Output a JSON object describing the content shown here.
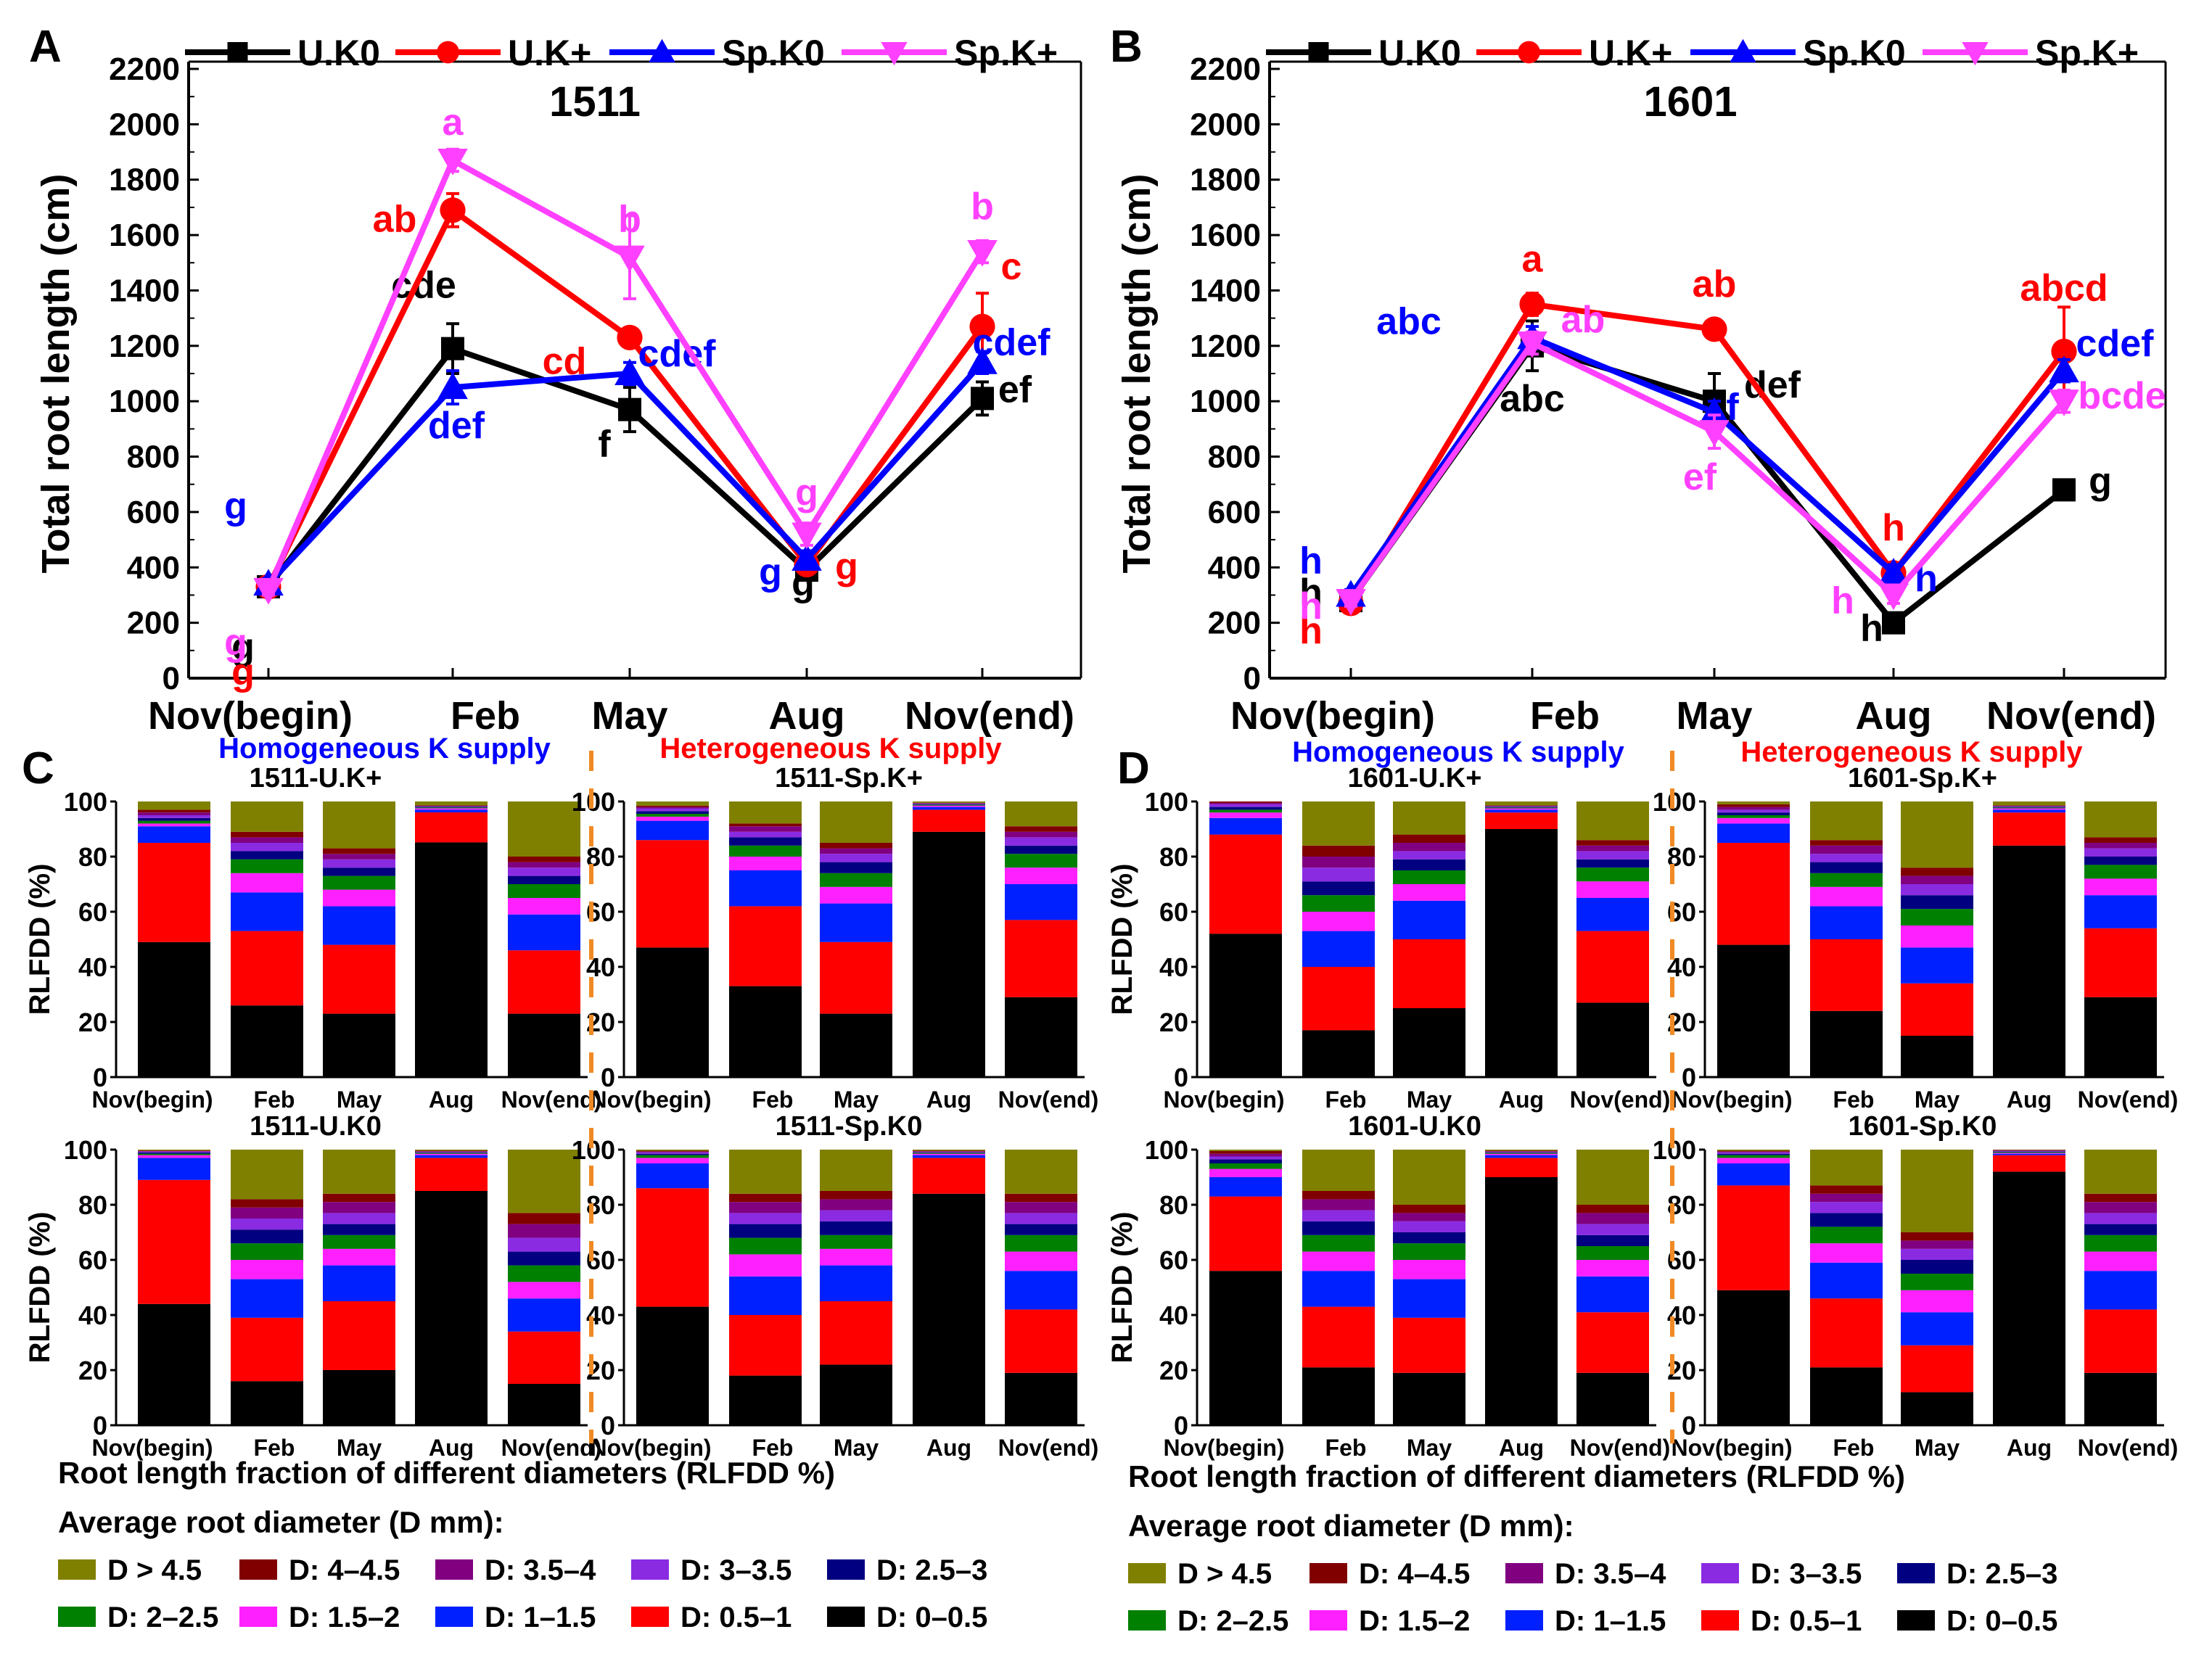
{
  "chart_data": {
    "type": "composite",
    "line_charts": [
      {
        "panel": "A",
        "type": "line",
        "title": "1511",
        "ylabel": "Total root length (cm)",
        "xlabel": "",
        "categories": [
          "Nov(begin)",
          "Feb",
          "May",
          "Aug",
          "Nov(end)"
        ],
        "ylim": [
          0,
          2200
        ],
        "yticks": [
          0,
          200,
          400,
          600,
          800,
          1000,
          1200,
          1400,
          1600,
          1800,
          2000,
          2200
        ],
        "series": [
          {
            "name": "U.K0",
            "color": "#000000",
            "marker": "square",
            "values": [
              330,
              1190,
              970,
              390,
              1010
            ],
            "errors": [
              20,
              90,
              80,
              30,
              60
            ],
            "letters": [
              "g",
              "cde",
              "f",
              "g",
              "ef"
            ]
          },
          {
            "name": "U.K+",
            "color": "#ff0000",
            "marker": "circle",
            "values": [
              330,
              1690,
              1230,
              410,
              1270
            ],
            "errors": [
              20,
              60,
              30,
              30,
              120
            ],
            "letters": [
              "g",
              "ab",
              "cd",
              "g",
              "c"
            ]
          },
          {
            "name": "Sp.K0",
            "color": "#0000ff",
            "marker": "triangle-up",
            "values": [
              340,
              1050,
              1100,
              430,
              1140
            ],
            "errors": [
              20,
              60,
              40,
              30,
              40
            ],
            "letters": [
              "g",
              "def",
              "cdef",
              "g",
              "cdef"
            ]
          },
          {
            "name": "Sp.K+",
            "color": "#ff40ff",
            "marker": "triangle-down",
            "values": [
              320,
              1870,
              1520,
              520,
              1540
            ],
            "errors": [
              20,
              40,
              150,
              40,
              40
            ],
            "letters": [
              "g",
              "a",
              "b",
              "g",
              "b"
            ]
          }
        ]
      },
      {
        "panel": "B",
        "type": "line",
        "title": "1601",
        "ylabel": "Total root length (cm)",
        "xlabel": "",
        "categories": [
          "Nov(begin)",
          "Feb",
          "May",
          "Aug",
          "Nov(end)"
        ],
        "ylim": [
          0,
          2200
        ],
        "yticks": [
          0,
          200,
          400,
          600,
          800,
          1000,
          1200,
          1400,
          1600,
          1800,
          2000,
          2200
        ],
        "series": [
          {
            "name": "U.K0",
            "color": "#000000",
            "marker": "square",
            "values": [
              280,
              1200,
              1000,
              200,
              680
            ],
            "errors": [
              20,
              90,
              100,
              30,
              30
            ],
            "letters": [
              "h",
              "abc",
              "def",
              "h",
              "g"
            ]
          },
          {
            "name": "U.K+",
            "color": "#ff0000",
            "marker": "circle",
            "values": [
              270,
              1350,
              1260,
              380,
              1180
            ],
            "errors": [
              20,
              40,
              30,
              30,
              160
            ],
            "letters": [
              "h",
              "a",
              "ab",
              "h",
              "abcd"
            ]
          },
          {
            "name": "Sp.K0",
            "color": "#0000ff",
            "marker": "triangle-up",
            "values": [
              300,
              1230,
              960,
              380,
              1110
            ],
            "errors": [
              20,
              40,
              40,
              30,
              40
            ],
            "letters": [
              "h",
              "abc",
              "f",
              "h",
              "cdef"
            ]
          },
          {
            "name": "Sp.K+",
            "color": "#ff40ff",
            "marker": "triangle-down",
            "values": [
              280,
              1210,
              890,
              300,
              1000
            ],
            "errors": [
              20,
              40,
              60,
              30,
              40
            ],
            "letters": [
              "h",
              "ab",
              "ef",
              "h",
              "bcde"
            ]
          }
        ]
      }
    ],
    "stacked_bar_charts": {
      "type": "bar",
      "stacked": true,
      "ylabel": "RLFDD (%)",
      "ylim": [
        0,
        100
      ],
      "yticks": [
        0,
        20,
        40,
        60,
        80,
        100
      ],
      "categories": [
        "Nov(begin)",
        "Feb",
        "May",
        "Aug",
        "Nov(end)"
      ],
      "diameter_classes": [
        {
          "name": "D: 0–0.5",
          "color": "#000000"
        },
        {
          "name": "D: 0.5–1",
          "color": "#ff0000"
        },
        {
          "name": "D: 1–1.5",
          "color": "#0020ff"
        },
        {
          "name": "D: 1.5–2",
          "color": "#ff20ff"
        },
        {
          "name": "D: 2–2.5",
          "color": "#008000"
        },
        {
          "name": "D: 2.5–3",
          "color": "#000080"
        },
        {
          "name": "D: 3–3.5",
          "color": "#8a2be2"
        },
        {
          "name": "D: 3.5–4",
          "color": "#800080"
        },
        {
          "name": "D: 4–4.5",
          "color": "#800000"
        },
        {
          "name": "D > 4.5",
          "color": "#808000"
        }
      ],
      "panels": [
        {
          "panel": "C",
          "title": "1511-U.K+",
          "stacks": [
            [
              49,
              36,
              6,
              1,
              1,
              1,
              1,
              1,
              1,
              3
            ],
            [
              26,
              27,
              14,
              7,
              5,
              3,
              3,
              2,
              2,
              11
            ],
            [
              23,
              25,
              14,
              6,
              5,
              3,
              3,
              2,
              2,
              17
            ],
            [
              86,
              11,
              1,
              0.5,
              0.3,
              0.2,
              0.2,
              0.2,
              0.2,
              1.4
            ],
            [
              23,
              23,
              13,
              6,
              5,
              3,
              3,
              2,
              2,
              20
            ]
          ]
        },
        {
          "panel": "C",
          "title": "1511-Sp.K+",
          "stacks": [
            [
              47,
              39,
              7,
              1.5,
              1,
              1,
              1,
              0.5,
              0.5,
              1.5
            ],
            [
              33,
              29,
              13,
              5,
              4,
              3,
              2,
              2,
              1,
              8
            ],
            [
              23,
              26,
              14,
              6,
              5,
              4,
              3,
              2,
              2,
              15
            ],
            [
              89,
              8,
              1,
              0.5,
              0.3,
              0.2,
              0.2,
              0.2,
              0.1,
              0.5
            ],
            [
              29,
              28,
              13,
              6,
              5,
              3,
              3,
              2,
              2,
              9
            ]
          ]
        },
        {
          "panel": "C",
          "title": "1511-U.K0",
          "stacks": [
            [
              44,
              45,
              8,
              1,
              0.5,
              0.5,
              0.3,
              0.2,
              0.2,
              0.3
            ],
            [
              16,
              23,
              14,
              7,
              6,
              5,
              4,
              4,
              3,
              18
            ],
            [
              20,
              25,
              13,
              6,
              5,
              4,
              4,
              4,
              3,
              16
            ],
            [
              85,
              12,
              1,
              0.5,
              0.3,
              0.2,
              0.2,
              0.2,
              0.2,
              0.4
            ],
            [
              15,
              19,
              12,
              6,
              6,
              5,
              5,
              5,
              4,
              23
            ]
          ]
        },
        {
          "panel": "C",
          "title": "1511-Sp.K0",
          "stacks": [
            [
              43,
              43,
              9,
              2,
              1,
              0.5,
              0.5,
              0.3,
              0.3,
              0.4
            ],
            [
              18,
              22,
              14,
              8,
              6,
              5,
              4,
              4,
              3,
              16
            ],
            [
              22,
              23,
              13,
              6,
              5,
              5,
              4,
              4,
              3,
              15
            ],
            [
              84,
              13,
              1,
              0.5,
              0.3,
              0.2,
              0.2,
              0.2,
              0.2,
              0.4
            ],
            [
              19,
              23,
              14,
              7,
              6,
              4,
              4,
              4,
              3,
              16
            ]
          ]
        },
        {
          "panel": "D",
          "title": "1601-U.K+",
          "stacks": [
            [
              52,
              36,
              6,
              2,
              1,
              1,
              1,
              0.5,
              0.5,
              0
            ],
            [
              17,
              23,
              13,
              7,
              6,
              5,
              5,
              4,
              4,
              16
            ],
            [
              25,
              25,
              14,
              6,
              5,
              4,
              3,
              3,
              3,
              12
            ],
            [
              90,
              6,
              1,
              0.5,
              0.3,
              0.2,
              0.2,
              0.2,
              0.2,
              1.4
            ],
            [
              27,
              26,
              12,
              6,
              5,
              3,
              3,
              2,
              2,
              14
            ]
          ]
        },
        {
          "panel": "D",
          "title": "1601-Sp.K+",
          "stacks": [
            [
              48,
              37,
              7,
              2,
              1,
              1,
              1,
              1,
              1,
              1
            ],
            [
              24,
              26,
              12,
              7,
              5,
              4,
              3,
              3,
              2,
              14
            ],
            [
              15,
              19,
              13,
              8,
              6,
              5,
              4,
              3,
              3,
              24
            ],
            [
              84,
              12,
              1,
              0.5,
              0.3,
              0.2,
              0.2,
              0.2,
              0.2,
              1.4
            ],
            [
              29,
              25,
              12,
              6,
              5,
              3,
              3,
              2,
              2,
              13
            ]
          ]
        },
        {
          "panel": "D",
          "title": "1601-U.K0",
          "stacks": [
            [
              56,
              27,
              7,
              3,
              2,
              1.5,
              1,
              1,
              1,
              0.5
            ],
            [
              21,
              22,
              13,
              7,
              6,
              5,
              4,
              4,
              3,
              15
            ],
            [
              19,
              20,
              14,
              7,
              6,
              4,
              4,
              3,
              3,
              20
            ],
            [
              90,
              7,
              1,
              0.5,
              0.3,
              0.2,
              0.2,
              0.2,
              0.2,
              0.4
            ],
            [
              19,
              22,
              13,
              6,
              5,
              4,
              4,
              4,
              3,
              20
            ]
          ]
        },
        {
          "panel": "D",
          "title": "1601-Sp.K0",
          "stacks": [
            [
              49,
              38,
              8,
              2,
              1,
              0.5,
              0.5,
              0.3,
              0.3,
              0.4
            ],
            [
              21,
              25,
              13,
              7,
              6,
              5,
              4,
              3,
              3,
              13
            ],
            [
              12,
              17,
              12,
              8,
              6,
              5,
              4,
              3,
              3,
              30
            ],
            [
              92,
              6,
              0.5,
              0.3,
              0.3,
              0.2,
              0.2,
              0.2,
              0.2,
              0.1
            ],
            [
              19,
              23,
              14,
              7,
              6,
              4,
              4,
              4,
              3,
              16
            ]
          ]
        }
      ]
    },
    "labels": {
      "panel_a": "A",
      "panel_b": "B",
      "panel_c": "C",
      "panel_d": "D",
      "homogeneous": "Homogeneous K supply",
      "heterogeneous": "Heterogeneous K supply",
      "rlfdd_caption": "Root length fraction of different diameters (RLFDD %)",
      "avg_diameter": "Average root diameter (D mm):"
    }
  }
}
